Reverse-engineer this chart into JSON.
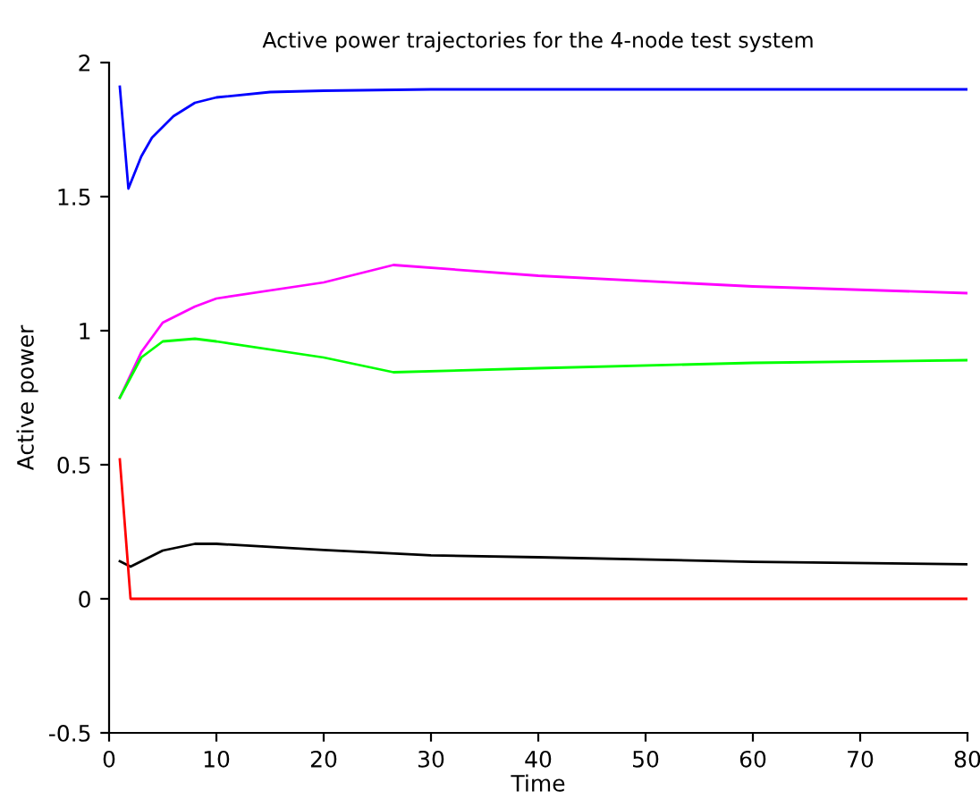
{
  "chart_data": {
    "type": "line",
    "title": "Active power trajectories for the 4-node test system",
    "xlabel": "Time",
    "ylabel": "Active power",
    "xlim": [
      0,
      80
    ],
    "xticks": [
      0,
      10,
      20,
      30,
      40,
      50,
      60,
      70,
      80
    ],
    "ylim": [
      -0.5,
      2
    ],
    "yticks": [
      -0.5,
      0,
      0.5,
      1,
      1.5,
      2
    ],
    "grid": false,
    "legend": false,
    "series": [
      {
        "color": "#0000ff",
        "x": [
          1,
          1.8,
          3,
          4,
          6,
          8,
          10,
          15,
          20,
          30,
          80
        ],
        "values": [
          1.91,
          1.53,
          1.65,
          1.72,
          1.8,
          1.85,
          1.87,
          1.89,
          1.895,
          1.9,
          1.9
        ]
      },
      {
        "color": "#ff00ff",
        "x": [
          1,
          3,
          5,
          8,
          10,
          20,
          26.5,
          40,
          60,
          80
        ],
        "values": [
          0.75,
          0.92,
          1.03,
          1.09,
          1.12,
          1.18,
          1.245,
          1.205,
          1.165,
          1.14
        ]
      },
      {
        "color": "#00ff00",
        "x": [
          1,
          3,
          5,
          8,
          10,
          20,
          26.5,
          40,
          60,
          80
        ],
        "values": [
          0.75,
          0.9,
          0.96,
          0.97,
          0.96,
          0.9,
          0.845,
          0.86,
          0.88,
          0.89
        ]
      },
      {
        "color": "#000000",
        "x": [
          1,
          2,
          5,
          8,
          10,
          20,
          30,
          40,
          60,
          80
        ],
        "values": [
          0.14,
          0.12,
          0.18,
          0.205,
          0.205,
          0.182,
          0.162,
          0.155,
          0.138,
          0.129
        ]
      },
      {
        "color": "#ff0000",
        "x": [
          1,
          2,
          80
        ],
        "values": [
          0.52,
          0,
          0
        ]
      }
    ]
  }
}
